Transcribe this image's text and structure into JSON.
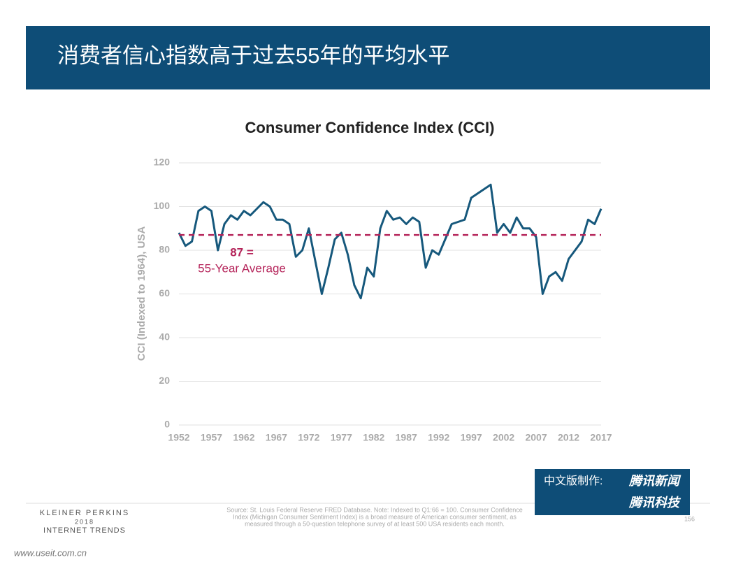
{
  "header": {
    "title": "消费者信心指数高于过去55年的平均水平"
  },
  "chart_data": {
    "type": "line",
    "title": "Consumer Confidence Index (CCI)",
    "y_label": "CCI (Indexed to 1964), USA",
    "x": [
      1952,
      1953,
      1954,
      1955,
      1956,
      1957,
      1958,
      1959,
      1960,
      1961,
      1962,
      1963,
      1964,
      1965,
      1966,
      1967,
      1968,
      1969,
      1970,
      1971,
      1972,
      1973,
      1974,
      1975,
      1976,
      1977,
      1978,
      1979,
      1980,
      1981,
      1982,
      1983,
      1984,
      1985,
      1986,
      1987,
      1988,
      1989,
      1990,
      1991,
      1992,
      1993,
      1994,
      1995,
      1996,
      1997,
      1998,
      1999,
      2000,
      2001,
      2002,
      2003,
      2004,
      2005,
      2006,
      2007,
      2008,
      2009,
      2010,
      2011,
      2012,
      2013,
      2014,
      2015,
      2016,
      2017
    ],
    "values": [
      88,
      82,
      84,
      98,
      100,
      98,
      80,
      92,
      96,
      94,
      98,
      96,
      99,
      102,
      100,
      94,
      94,
      92,
      77,
      80,
      90,
      75,
      60,
      72,
      85,
      88,
      78,
      64,
      58,
      72,
      68,
      90,
      98,
      94,
      95,
      92,
      95,
      93,
      72,
      80,
      78,
      85,
      92,
      93,
      94,
      104,
      106,
      108,
      110,
      88,
      92,
      88,
      95,
      90,
      90,
      86,
      60,
      68,
      70,
      66,
      76,
      80,
      84,
      94,
      92,
      99
    ],
    "color": "#16587c",
    "xlim": [
      1952,
      2017
    ],
    "xticks": [
      1952,
      1957,
      1962,
      1967,
      1972,
      1977,
      1982,
      1987,
      1992,
      1997,
      2002,
      2007,
      2012,
      2017
    ],
    "ylim": [
      0,
      120
    ],
    "yticks": [
      0,
      20,
      40,
      60,
      80,
      100,
      120
    ],
    "grid": true,
    "average": {
      "value": 87,
      "label": "87 =",
      "text": "55-Year Average",
      "color": "#b5245a"
    }
  },
  "footer": {
    "source": [
      "Source: St. Louis Federal Reserve FRED Database.  Note: Indexed to Q1:66 = 100. Consumer Confidence",
      "Index (Michigan Consumer Sentiment Index) is a broad measure of American consumer sentiment, as",
      "measured through a 50-question telephone survey of at least 500 USA residents each month."
    ],
    "brand": [
      "KLEINER PERKINS",
      "2018",
      "INTERNET TRENDS"
    ],
    "page": "156",
    "badge": [
      "中文版制作:",
      "腾讯新闻",
      "腾讯科技"
    ],
    "site": "www.useit.com.cn"
  }
}
